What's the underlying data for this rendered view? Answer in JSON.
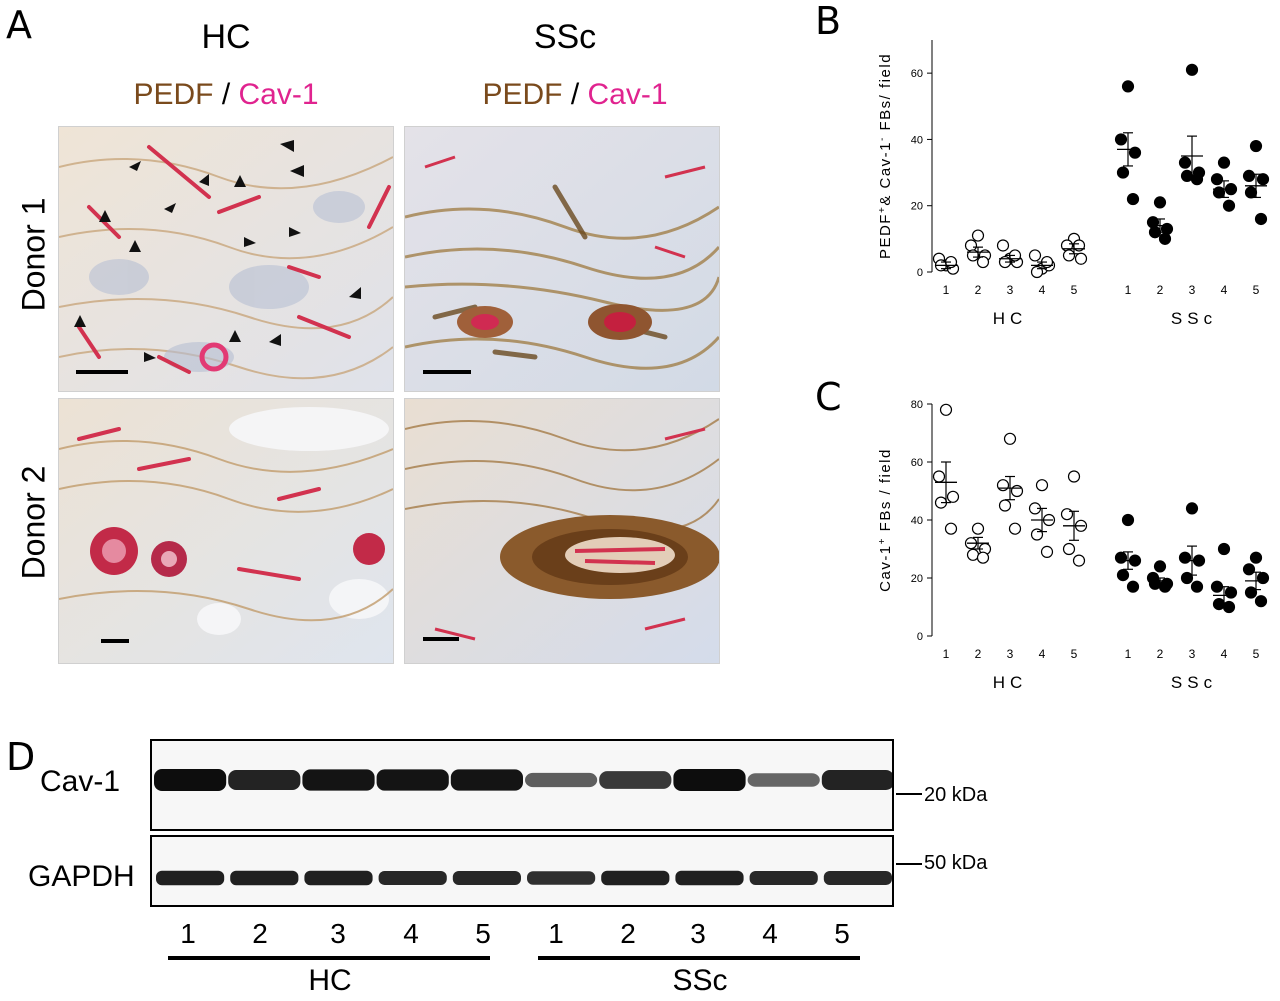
{
  "panels": {
    "A": "A",
    "B": "B",
    "C": "C",
    "D": "D"
  },
  "panelA": {
    "col_titles": [
      "HC",
      "SSc"
    ],
    "stain_pedf": "PEDF",
    "stain_sep": "/",
    "stain_cav": "Cav-1",
    "row_labels": [
      "Donor 1",
      "Donor 2"
    ]
  },
  "blot": {
    "rows": [
      "Cav-1",
      "GAPDH"
    ],
    "markers": [
      "20 kDa",
      "50 kDa"
    ],
    "lanes": [
      "1",
      "2",
      "3",
      "4",
      "5",
      "1",
      "2",
      "3",
      "4",
      "5"
    ],
    "groups": [
      "HC",
      "SSc"
    ],
    "cav1_band_intensity": [
      1.0,
      0.85,
      0.95,
      0.95,
      0.95,
      0.45,
      0.7,
      1.0,
      0.4,
      0.85
    ],
    "gapdh_band_intensity": [
      0.85,
      0.85,
      0.85,
      0.8,
      0.8,
      0.75,
      0.85,
      0.85,
      0.8,
      0.8
    ]
  },
  "chart_data": [
    {
      "type": "scatter",
      "panel": "B",
      "ylabel": "PEDF+& Cav-1- FBs/ field",
      "ylim": [
        0,
        70
      ],
      "yticks": [
        0,
        20,
        40,
        60
      ],
      "categories": [
        "1",
        "2",
        "3",
        "4",
        "5",
        "1",
        "2",
        "3",
        "4",
        "5"
      ],
      "groups": [
        "HC",
        "SSc"
      ],
      "series": [
        {
          "group": "HC",
          "marker": "open",
          "points": [
            [
              2,
              4,
              1,
              2,
              3
            ],
            [
              11,
              8,
              5,
              5,
              3
            ],
            [
              4,
              8,
              3,
              3,
              5
            ],
            [
              1,
              5,
              2,
              0,
              3
            ],
            [
              10,
              8,
              4,
              5,
              8
            ]
          ],
          "mean": [
            2,
            6,
            4,
            2,
            7
          ],
          "sem": [
            1,
            1.5,
            1,
            1,
            1.5
          ]
        },
        {
          "group": "SSc",
          "marker": "filled",
          "points": [
            [
              56,
              40,
              36,
              30,
              22
            ],
            [
              21,
              15,
              13,
              12,
              10
            ],
            [
              61,
              33,
              30,
              29,
              28
            ],
            [
              33,
              28,
              25,
              24,
              20
            ],
            [
              38,
              29,
              28,
              24,
              16
            ]
          ],
          "mean": [
            37,
            14,
            35,
            25,
            26
          ],
          "sem": [
            5,
            2,
            6,
            2.5,
            3.5
          ]
        }
      ]
    },
    {
      "type": "scatter",
      "panel": "C",
      "ylabel": "Cav-1+ FBs / field",
      "ylim": [
        0,
        80
      ],
      "yticks": [
        0,
        20,
        40,
        60,
        80
      ],
      "categories": [
        "1",
        "2",
        "3",
        "4",
        "5",
        "1",
        "2",
        "3",
        "4",
        "5"
      ],
      "groups": [
        "HC",
        "SSc"
      ],
      "series": [
        {
          "group": "HC",
          "marker": "open",
          "points": [
            [
              78,
              55,
              48,
              46,
              37
            ],
            [
              37,
              32,
              30,
              28,
              27
            ],
            [
              68,
              52,
              50,
              45,
              37
            ],
            [
              52,
              44,
              40,
              35,
              29
            ],
            [
              55,
              42,
              38,
              30,
              26
            ]
          ],
          "mean": [
            53,
            32,
            51,
            40,
            38
          ],
          "sem": [
            7,
            2,
            4,
            4,
            5
          ]
        },
        {
          "group": "SSc",
          "marker": "filled",
          "points": [
            [
              40,
              27,
              26,
              21,
              17
            ],
            [
              24,
              20,
              18,
              18,
              17
            ],
            [
              44,
              27,
              26,
              20,
              17
            ],
            [
              30,
              17,
              15,
              11,
              10
            ],
            [
              27,
              23,
              20,
              15,
              12
            ]
          ],
          "mean": [
            26,
            19,
            26,
            14,
            19
          ],
          "sem": [
            3,
            1,
            5,
            3,
            3
          ]
        }
      ]
    }
  ]
}
